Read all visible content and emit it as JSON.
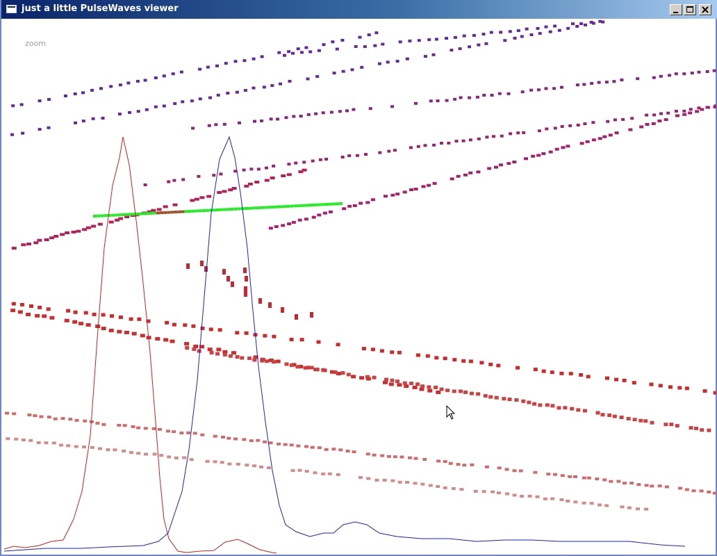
{
  "window": {
    "title": "just a little PulseWaves viewer",
    "controls": [
      "minimize-icon",
      "maximize-icon",
      "close-icon"
    ]
  },
  "viewer": {
    "mode_label": "zoom",
    "background": "#ffffff",
    "cursor_icon": "arrow-cursor-icon",
    "colors": {
      "outgoing_waveform": "#cc1f1f",
      "return_waveform": "#1f1fbf",
      "selected_pulse": "#22ee22",
      "selected_pulse_samples": "#a0522d",
      "sample_gradient_top": "#5a2ca0",
      "sample_gradient_bottom": "#d8a8a8"
    }
  }
}
